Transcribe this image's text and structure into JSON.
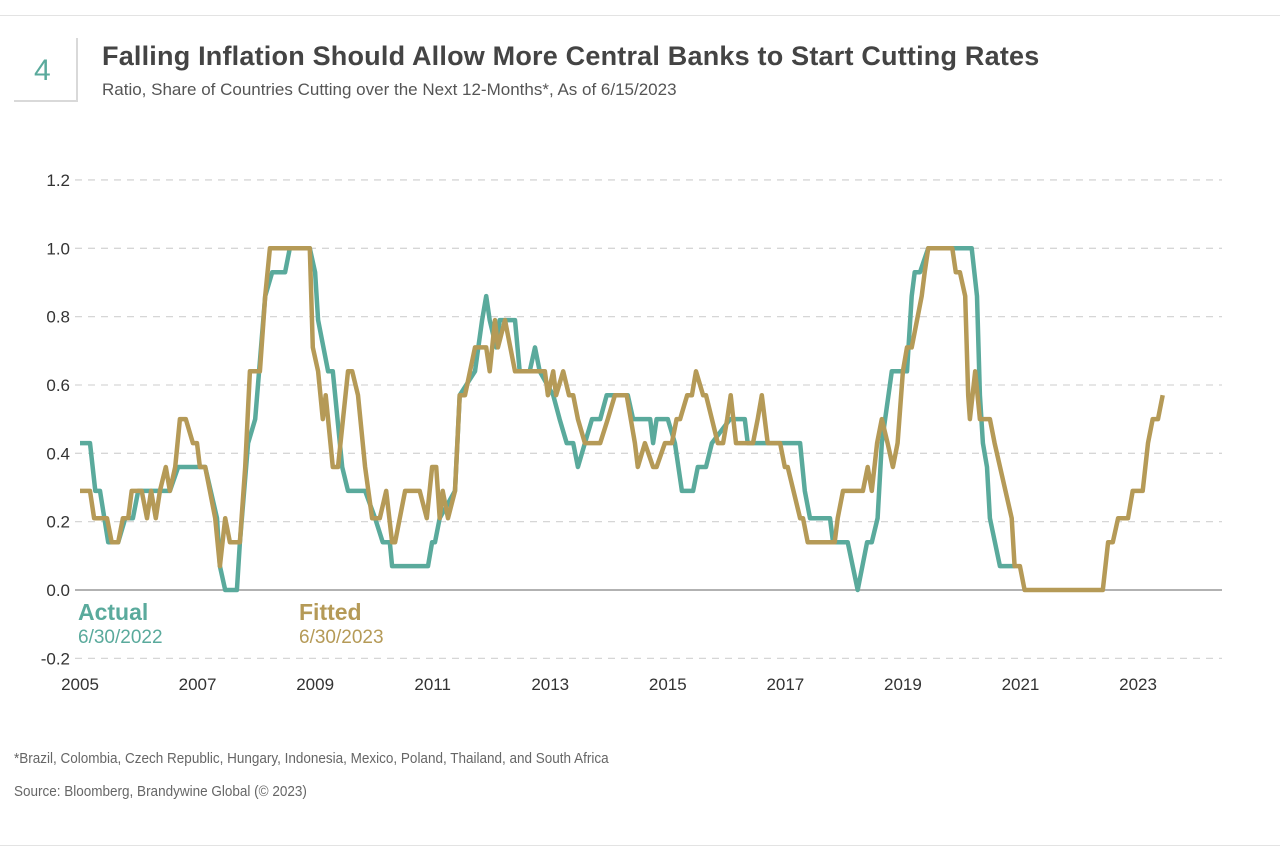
{
  "badge": "4",
  "title": "Falling Inflation Should Allow More Central Banks to Start Cutting Rates",
  "subtitle": "Ratio, Share of Countries Cutting over the Next 12-Months*, As of 6/15/2023",
  "footnote": "*Brazil, Colombia, Czech Republic, Hungary, Indonesia, Mexico, Poland, Thailand, and South Africa",
  "source": "Source: Bloomberg, Brandywine Global (© 2023)",
  "chart_data": {
    "type": "line",
    "title": "Falling Inflation Should Allow More Central Banks to Start Cutting Rates",
    "xlabel": "",
    "ylabel": "",
    "xlim": [
      2005,
      2024.4
    ],
    "ylim": [
      -0.2,
      1.2
    ],
    "x_ticks": [
      "2005",
      "2007",
      "2009",
      "2011",
      "2013",
      "2015",
      "2017",
      "2019",
      "2021",
      "2023"
    ],
    "y_ticks": [
      "-0.2",
      "0.0",
      "0.2",
      "0.4",
      "0.6",
      "0.8",
      "1.0",
      "1.2"
    ],
    "grid": "horizontal dashed",
    "legend": "bottom-left",
    "series": [
      {
        "name": "Actual",
        "date": "6/30/2022",
        "color": "#5aaa9c",
        "points": [
          [
            2005.0,
            0.43
          ],
          [
            2005.17,
            0.43
          ],
          [
            2005.26,
            0.29
          ],
          [
            2005.34,
            0.29
          ],
          [
            2005.48,
            0.14
          ],
          [
            2005.65,
            0.14
          ],
          [
            2005.77,
            0.21
          ],
          [
            2005.9,
            0.21
          ],
          [
            2005.99,
            0.29
          ],
          [
            2006.53,
            0.29
          ],
          [
            2006.67,
            0.36
          ],
          [
            2007.13,
            0.36
          ],
          [
            2007.33,
            0.21
          ],
          [
            2007.38,
            0.07
          ],
          [
            2007.47,
            0.0
          ],
          [
            2007.67,
            0.0
          ],
          [
            2007.72,
            0.14
          ],
          [
            2007.86,
            0.43
          ],
          [
            2007.98,
            0.5
          ],
          [
            2008.15,
            0.86
          ],
          [
            2008.27,
            0.93
          ],
          [
            2008.49,
            0.93
          ],
          [
            2008.57,
            1.0
          ],
          [
            2008.91,
            1.0
          ],
          [
            2009.0,
            0.93
          ],
          [
            2009.05,
            0.79
          ],
          [
            2009.22,
            0.64
          ],
          [
            2009.3,
            0.64
          ],
          [
            2009.46,
            0.36
          ],
          [
            2009.56,
            0.29
          ],
          [
            2009.85,
            0.29
          ],
          [
            2010.02,
            0.21
          ],
          [
            2010.15,
            0.14
          ],
          [
            2010.27,
            0.14
          ],
          [
            2010.31,
            0.07
          ],
          [
            2010.92,
            0.07
          ],
          [
            2010.99,
            0.14
          ],
          [
            2011.04,
            0.14
          ],
          [
            2011.12,
            0.21
          ],
          [
            2011.38,
            0.29
          ],
          [
            2011.46,
            0.57
          ],
          [
            2011.72,
            0.64
          ],
          [
            2011.84,
            0.79
          ],
          [
            2011.91,
            0.86
          ],
          [
            2011.97,
            0.79
          ],
          [
            2012.08,
            0.71
          ],
          [
            2012.14,
            0.79
          ],
          [
            2012.4,
            0.79
          ],
          [
            2012.48,
            0.64
          ],
          [
            2012.65,
            0.64
          ],
          [
            2012.74,
            0.71
          ],
          [
            2012.82,
            0.64
          ],
          [
            2013.05,
            0.57
          ],
          [
            2013.16,
            0.5
          ],
          [
            2013.28,
            0.43
          ],
          [
            2013.39,
            0.43
          ],
          [
            2013.47,
            0.36
          ],
          [
            2013.59,
            0.43
          ],
          [
            2013.71,
            0.5
          ],
          [
            2013.85,
            0.5
          ],
          [
            2013.96,
            0.57
          ],
          [
            2014.32,
            0.57
          ],
          [
            2014.41,
            0.5
          ],
          [
            2014.7,
            0.5
          ],
          [
            2014.75,
            0.43
          ],
          [
            2014.81,
            0.5
          ],
          [
            2015.0,
            0.5
          ],
          [
            2015.12,
            0.43
          ],
          [
            2015.24,
            0.29
          ],
          [
            2015.43,
            0.29
          ],
          [
            2015.51,
            0.36
          ],
          [
            2015.65,
            0.36
          ],
          [
            2015.75,
            0.43
          ],
          [
            2016.06,
            0.5
          ],
          [
            2016.31,
            0.5
          ],
          [
            2016.36,
            0.43
          ],
          [
            2017.25,
            0.43
          ],
          [
            2017.33,
            0.29
          ],
          [
            2017.42,
            0.21
          ],
          [
            2017.76,
            0.21
          ],
          [
            2017.81,
            0.14
          ],
          [
            2018.06,
            0.14
          ],
          [
            2018.23,
            0.0
          ],
          [
            2018.39,
            0.14
          ],
          [
            2018.47,
            0.14
          ],
          [
            2018.57,
            0.21
          ],
          [
            2018.64,
            0.43
          ],
          [
            2018.81,
            0.64
          ],
          [
            2019.07,
            0.64
          ],
          [
            2019.15,
            0.86
          ],
          [
            2019.2,
            0.93
          ],
          [
            2019.29,
            0.93
          ],
          [
            2019.43,
            1.0
          ],
          [
            2020.17,
            1.0
          ],
          [
            2020.26,
            0.86
          ],
          [
            2020.31,
            0.57
          ],
          [
            2020.36,
            0.43
          ],
          [
            2020.43,
            0.36
          ],
          [
            2020.48,
            0.21
          ],
          [
            2020.65,
            0.07
          ],
          [
            2020.9,
            0.07
          ]
        ]
      },
      {
        "name": "Fitted",
        "date": "6/30/2023",
        "color": "#b59a57",
        "points": [
          [
            2005.0,
            0.29
          ],
          [
            2005.17,
            0.29
          ],
          [
            2005.24,
            0.21
          ],
          [
            2005.46,
            0.21
          ],
          [
            2005.54,
            0.14
          ],
          [
            2005.65,
            0.14
          ],
          [
            2005.73,
            0.21
          ],
          [
            2005.82,
            0.21
          ],
          [
            2005.88,
            0.29
          ],
          [
            2006.05,
            0.29
          ],
          [
            2006.14,
            0.21
          ],
          [
            2006.21,
            0.29
          ],
          [
            2006.29,
            0.21
          ],
          [
            2006.36,
            0.29
          ],
          [
            2006.46,
            0.36
          ],
          [
            2006.53,
            0.29
          ],
          [
            2006.62,
            0.36
          ],
          [
            2006.7,
            0.5
          ],
          [
            2006.8,
            0.5
          ],
          [
            2006.92,
            0.43
          ],
          [
            2006.99,
            0.43
          ],
          [
            2007.04,
            0.36
          ],
          [
            2007.13,
            0.36
          ],
          [
            2007.21,
            0.29
          ],
          [
            2007.3,
            0.21
          ],
          [
            2007.38,
            0.07
          ],
          [
            2007.47,
            0.21
          ],
          [
            2007.55,
            0.14
          ],
          [
            2007.72,
            0.14
          ],
          [
            2007.81,
            0.36
          ],
          [
            2007.89,
            0.64
          ],
          [
            2008.06,
            0.64
          ],
          [
            2008.15,
            0.86
          ],
          [
            2008.23,
            1.0
          ],
          [
            2008.91,
            1.0
          ],
          [
            2008.96,
            0.71
          ],
          [
            2009.05,
            0.64
          ],
          [
            2009.13,
            0.5
          ],
          [
            2009.18,
            0.57
          ],
          [
            2009.3,
            0.36
          ],
          [
            2009.39,
            0.36
          ],
          [
            2009.56,
            0.64
          ],
          [
            2009.63,
            0.64
          ],
          [
            2009.73,
            0.57
          ],
          [
            2009.85,
            0.36
          ],
          [
            2009.97,
            0.21
          ],
          [
            2010.1,
            0.21
          ],
          [
            2010.21,
            0.29
          ],
          [
            2010.31,
            0.14
          ],
          [
            2010.36,
            0.14
          ],
          [
            2010.53,
            0.29
          ],
          [
            2010.78,
            0.29
          ],
          [
            2010.9,
            0.21
          ],
          [
            2010.99,
            0.36
          ],
          [
            2011.06,
            0.36
          ],
          [
            2011.12,
            0.21
          ],
          [
            2011.17,
            0.29
          ],
          [
            2011.26,
            0.21
          ],
          [
            2011.38,
            0.29
          ],
          [
            2011.46,
            0.57
          ],
          [
            2011.55,
            0.57
          ],
          [
            2011.72,
            0.71
          ],
          [
            2011.91,
            0.71
          ],
          [
            2011.97,
            0.64
          ],
          [
            2012.06,
            0.79
          ],
          [
            2012.11,
            0.71
          ],
          [
            2012.23,
            0.79
          ],
          [
            2012.4,
            0.64
          ],
          [
            2012.91,
            0.64
          ],
          [
            2012.96,
            0.57
          ],
          [
            2013.05,
            0.64
          ],
          [
            2013.1,
            0.57
          ],
          [
            2013.22,
            0.64
          ],
          [
            2013.32,
            0.57
          ],
          [
            2013.39,
            0.57
          ],
          [
            2013.47,
            0.5
          ],
          [
            2013.59,
            0.43
          ],
          [
            2013.85,
            0.43
          ],
          [
            2013.98,
            0.5
          ],
          [
            2014.1,
            0.57
          ],
          [
            2014.3,
            0.57
          ],
          [
            2014.44,
            0.43
          ],
          [
            2014.49,
            0.36
          ],
          [
            2014.61,
            0.43
          ],
          [
            2014.75,
            0.36
          ],
          [
            2014.81,
            0.36
          ],
          [
            2014.95,
            0.43
          ],
          [
            2015.07,
            0.43
          ],
          [
            2015.15,
            0.5
          ],
          [
            2015.21,
            0.5
          ],
          [
            2015.33,
            0.57
          ],
          [
            2015.41,
            0.57
          ],
          [
            2015.48,
            0.64
          ],
          [
            2015.6,
            0.57
          ],
          [
            2015.65,
            0.57
          ],
          [
            2015.85,
            0.43
          ],
          [
            2015.94,
            0.43
          ],
          [
            2016.01,
            0.5
          ],
          [
            2016.07,
            0.57
          ],
          [
            2016.16,
            0.43
          ],
          [
            2016.45,
            0.43
          ],
          [
            2016.53,
            0.5
          ],
          [
            2016.6,
            0.57
          ],
          [
            2016.7,
            0.43
          ],
          [
            2016.91,
            0.43
          ],
          [
            2016.99,
            0.36
          ],
          [
            2017.04,
            0.36
          ],
          [
            2017.25,
            0.21
          ],
          [
            2017.3,
            0.21
          ],
          [
            2017.38,
            0.14
          ],
          [
            2017.84,
            0.14
          ],
          [
            2017.89,
            0.21
          ],
          [
            2017.98,
            0.29
          ],
          [
            2018.32,
            0.29
          ],
          [
            2018.4,
            0.36
          ],
          [
            2018.47,
            0.29
          ],
          [
            2018.56,
            0.43
          ],
          [
            2018.64,
            0.5
          ],
          [
            2018.74,
            0.43
          ],
          [
            2018.83,
            0.36
          ],
          [
            2018.91,
            0.43
          ],
          [
            2019.0,
            0.64
          ],
          [
            2019.07,
            0.71
          ],
          [
            2019.15,
            0.71
          ],
          [
            2019.32,
            0.86
          ],
          [
            2019.37,
            0.93
          ],
          [
            2019.43,
            1.0
          ],
          [
            2019.84,
            1.0
          ],
          [
            2019.9,
            0.93
          ],
          [
            2019.97,
            0.93
          ],
          [
            2020.06,
            0.86
          ],
          [
            2020.11,
            0.57
          ],
          [
            2020.14,
            0.5
          ],
          [
            2020.23,
            0.64
          ],
          [
            2020.31,
            0.5
          ],
          [
            2020.48,
            0.5
          ],
          [
            2020.56,
            0.43
          ],
          [
            2020.85,
            0.21
          ],
          [
            2020.9,
            0.07
          ],
          [
            2020.99,
            0.07
          ],
          [
            2021.07,
            0.0
          ],
          [
            2022.4,
            0.0
          ],
          [
            2022.49,
            0.14
          ],
          [
            2022.57,
            0.14
          ],
          [
            2022.66,
            0.21
          ],
          [
            2022.83,
            0.21
          ],
          [
            2022.91,
            0.29
          ],
          [
            2023.08,
            0.29
          ],
          [
            2023.17,
            0.43
          ],
          [
            2023.25,
            0.5
          ],
          [
            2023.34,
            0.5
          ],
          [
            2023.42,
            0.57
          ]
        ]
      }
    ]
  }
}
